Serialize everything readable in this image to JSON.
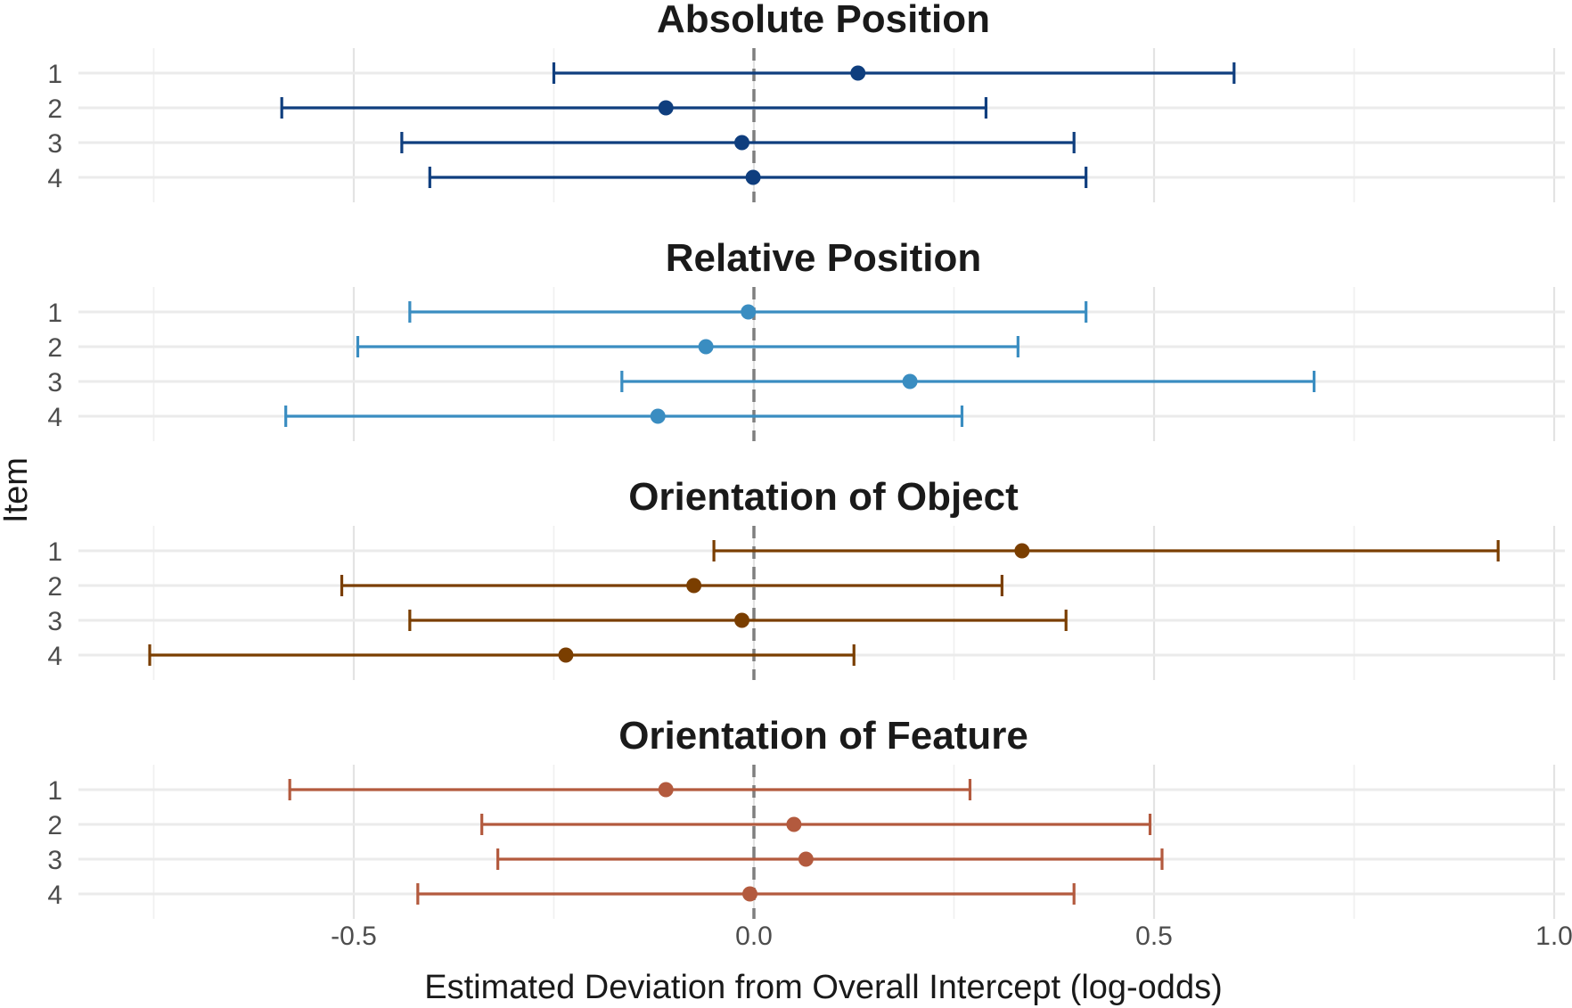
{
  "chart_data": {
    "type": "forest",
    "xlabel": "Estimated Deviation from Overall Intercept (log-odds)",
    "ylabel": "Item",
    "xlim": [
      -0.84,
      1.02
    ],
    "x_ticks": [
      -0.5,
      0.0,
      0.5,
      1.0
    ],
    "x_tick_labels": [
      "-0.5",
      "0.0",
      "0.5",
      "1.0"
    ],
    "reference_line": 0.0,
    "grid": true,
    "panels": [
      {
        "title": "Absolute Position",
        "color": "#0F3E7E",
        "items": [
          {
            "label": "1",
            "estimate": 0.13,
            "lower": -0.25,
            "upper": 0.6
          },
          {
            "label": "2",
            "estimate": -0.11,
            "lower": -0.59,
            "upper": 0.29
          },
          {
            "label": "3",
            "estimate": -0.015,
            "lower": -0.44,
            "upper": 0.4
          },
          {
            "label": "4",
            "estimate": -0.001,
            "lower": -0.405,
            "upper": 0.415
          }
        ]
      },
      {
        "title": "Relative Position",
        "color": "#3A8DC1",
        "items": [
          {
            "label": "1",
            "estimate": -0.007,
            "lower": -0.43,
            "upper": 0.415
          },
          {
            "label": "2",
            "estimate": -0.06,
            "lower": -0.495,
            "upper": 0.33
          },
          {
            "label": "3",
            "estimate": 0.195,
            "lower": -0.165,
            "upper": 0.7
          },
          {
            "label": "4",
            "estimate": -0.12,
            "lower": -0.585,
            "upper": 0.26
          }
        ]
      },
      {
        "title": "Orientation of Object",
        "color": "#7A3E00",
        "items": [
          {
            "label": "1",
            "estimate": 0.335,
            "lower": -0.05,
            "upper": 0.93
          },
          {
            "label": "2",
            "estimate": -0.075,
            "lower": -0.515,
            "upper": 0.31
          },
          {
            "label": "3",
            "estimate": -0.015,
            "lower": -0.43,
            "upper": 0.39
          },
          {
            "label": "4",
            "estimate": -0.235,
            "lower": -0.755,
            "upper": 0.125
          }
        ]
      },
      {
        "title": "Orientation of Feature",
        "color": "#B35A3E",
        "items": [
          {
            "label": "1",
            "estimate": -0.11,
            "lower": -0.58,
            "upper": 0.27
          },
          {
            "label": "2",
            "estimate": 0.05,
            "lower": -0.34,
            "upper": 0.495
          },
          {
            "label": "3",
            "estimate": 0.065,
            "lower": -0.32,
            "upper": 0.51
          },
          {
            "label": "4",
            "estimate": -0.005,
            "lower": -0.42,
            "upper": 0.4
          }
        ]
      }
    ]
  }
}
